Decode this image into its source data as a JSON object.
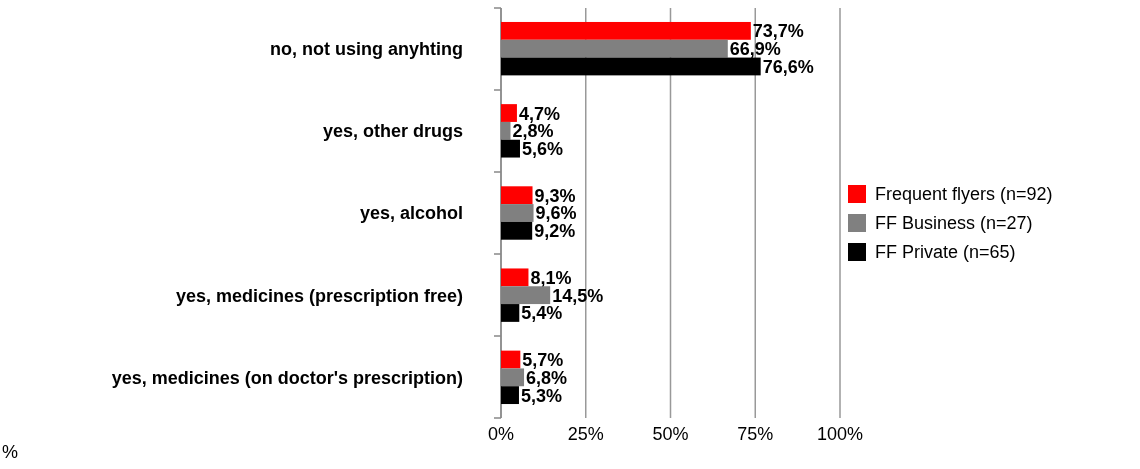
{
  "chart_data": {
    "type": "bar",
    "orientation": "horizontal",
    "categories": [
      "no, not using anyhting",
      "yes, other drugs",
      "yes, alcohol",
      "yes, medicines (prescription free)",
      "yes, medicines (on doctor's prescription)"
    ],
    "series": [
      {
        "name": "Frequent flyers (n=92)",
        "color": "#ff0000",
        "values": [
          73.7,
          4.7,
          9.3,
          8.1,
          5.7
        ],
        "value_labels": [
          "73,7%",
          "4,7%",
          "9,3%",
          "8,1%",
          "5,7%"
        ]
      },
      {
        "name": "FF Business (n=27)",
        "color": "#808080",
        "values": [
          66.9,
          2.8,
          9.6,
          14.5,
          6.8
        ],
        "value_labels": [
          "66,9%",
          "2,8%",
          "9,6%",
          "14,5%",
          "6,8%"
        ]
      },
      {
        "name": "FF Private (n=65)",
        "color": "#000000",
        "values": [
          76.6,
          5.6,
          9.2,
          5.4,
          5.3
        ],
        "value_labels": [
          "76,6%",
          "5,6%",
          "9,2%",
          "5,4%",
          "5,3%"
        ]
      }
    ],
    "xlim": [
      0,
      100
    ],
    "xticks": [
      {
        "value": 0,
        "label": "0%"
      },
      {
        "value": 25,
        "label": "25%"
      },
      {
        "value": 50,
        "label": "50%"
      },
      {
        "value": 75,
        "label": "75%"
      },
      {
        "value": 100,
        "label": "100%"
      }
    ],
    "grid": "x",
    "legend": "right",
    "annotations": [
      "%"
    ]
  }
}
